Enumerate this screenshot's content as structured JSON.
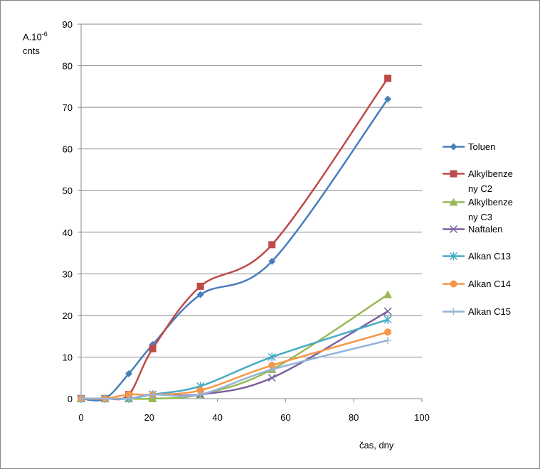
{
  "chart_data": {
    "type": "line",
    "smooth": true,
    "ylabel": {
      "base": "A.10",
      "exponent": "-6",
      "unit": "cnts"
    },
    "xlabel": "čas, dny",
    "x": [
      0,
      7,
      14,
      21,
      35,
      56,
      90
    ],
    "xlim": [
      0,
      100
    ],
    "xticks": [
      0,
      20,
      40,
      60,
      80,
      100
    ],
    "ylim": [
      0,
      90
    ],
    "yticks": [
      0,
      10,
      20,
      30,
      40,
      50,
      60,
      70,
      80,
      90
    ],
    "grid": true,
    "legend": "right",
    "series": [
      {
        "name": "Toluen",
        "color": "#4a7ebb",
        "marker": "diamond",
        "values": [
          0,
          0,
          6,
          13,
          25,
          33,
          72
        ]
      },
      {
        "name": "Alkylbenzeny C2",
        "color": "#be4b48",
        "marker": "square",
        "values": [
          0,
          0,
          1,
          12,
          27,
          37,
          77
        ]
      },
      {
        "name": "Alkylbenzeny C3",
        "color": "#98b954",
        "marker": "triangle",
        "values": [
          0,
          0,
          0,
          0,
          1,
          7,
          25
        ]
      },
      {
        "name": "Naftalen",
        "color": "#7d60a0",
        "marker": "x",
        "values": [
          0,
          0,
          0,
          1,
          1,
          5,
          21
        ]
      },
      {
        "name": "Alkan C13",
        "color": "#46aac5",
        "marker": "star",
        "values": [
          0,
          0,
          0,
          1,
          3,
          10,
          19
        ]
      },
      {
        "name": "Alkan C14",
        "color": "#f79646",
        "marker": "circle",
        "values": [
          0,
          0,
          1,
          1,
          2,
          8,
          16
        ]
      },
      {
        "name": "Alkan C15",
        "color": "#95b3d7",
        "marker": "plus",
        "values": [
          0,
          0,
          0,
          1,
          1,
          7,
          14
        ]
      }
    ]
  }
}
